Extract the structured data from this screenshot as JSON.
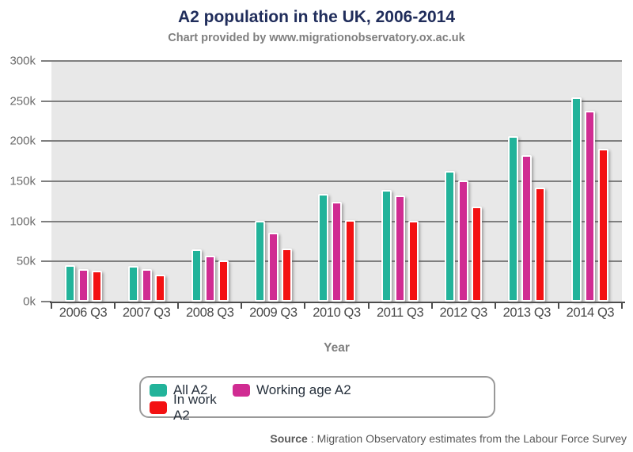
{
  "chart_data": {
    "type": "bar",
    "title": "A2 population in the UK, 2006-2014",
    "subtitle": "Chart provided by www.migrationobservatory.ox.ac.uk",
    "xlabel": "Year",
    "ylabel": "",
    "units": "persons, thousands (k)",
    "ylim": [
      0,
      300
    ],
    "ytick_step": 50,
    "ytick_suffix": "k",
    "grid": true,
    "legend_position": "bottom-center",
    "plot_background": "#e8e8e8",
    "categories": [
      "2006 Q3",
      "2007 Q3",
      "2008 Q3",
      "2009 Q3",
      "2010 Q3",
      "2011 Q3",
      "2012 Q3",
      "2013 Q3",
      "2014 Q3"
    ],
    "series": [
      {
        "name": "All A2",
        "color": "#22b39a",
        "values": [
          41,
          40,
          61,
          97,
          130,
          135,
          159,
          202,
          251
        ]
      },
      {
        "name": "Working age A2",
        "color": "#d02c92",
        "values": [
          37,
          37,
          53,
          82,
          120,
          128,
          147,
          179,
          234
        ]
      },
      {
        "name": "In work A2",
        "color": "#f31112",
        "values": [
          35,
          30,
          47,
          62,
          98,
          97,
          114,
          138,
          187
        ]
      }
    ]
  },
  "source": {
    "label": "Source",
    "text": ": Migration Observatory estimates from the Labour Force Survey"
  },
  "colors": {
    "title": "#202d5b",
    "subtitle": "#7f7f7f",
    "grid": "#7f7f7f",
    "axis": "#4d4d4d"
  }
}
